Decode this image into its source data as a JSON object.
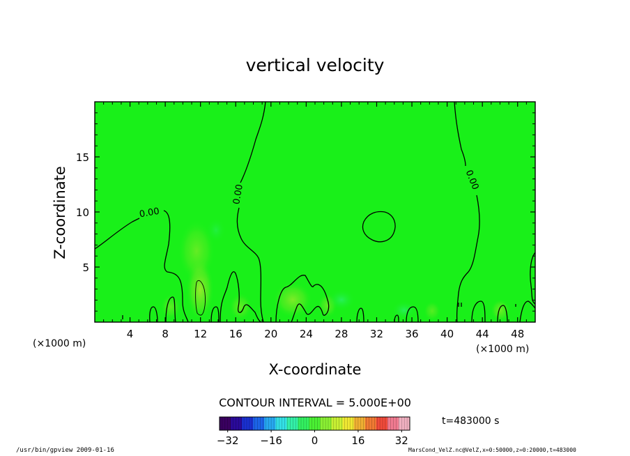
{
  "chart_data": {
    "type": "heatmap",
    "title": "vertical velocity",
    "xlabel": "X-coordinate",
    "ylabel": "Z-coordinate",
    "x_unit": "(×1000 m)",
    "y_unit": "(×1000 m)",
    "xlim": [
      0,
      50
    ],
    "ylim": [
      0,
      20
    ],
    "x_ticks": [
      4,
      8,
      12,
      16,
      20,
      24,
      28,
      32,
      36,
      40,
      44,
      48
    ],
    "y_ticks": [
      5,
      10,
      15
    ],
    "contour_interval_label": "CONTOUR INTERVAL = 5.000E+00",
    "contour_labels": [
      {
        "text": "0.00",
        "x": 6.2,
        "z": 9.9,
        "angle": -10
      },
      {
        "text": "0.00",
        "x": 16.3,
        "z": 11.6,
        "angle": -80
      },
      {
        "text": "0.00",
        "x": 42.8,
        "z": 12.9,
        "angle": 68
      }
    ],
    "colorbar": {
      "min": -35,
      "max": 35,
      "ticks": [
        -32,
        -16,
        0,
        16,
        32
      ],
      "colors": [
        "#3a0060",
        "#2a0a9a",
        "#1a30d0",
        "#1c64e8",
        "#27a8f0",
        "#33e0e6",
        "#33f0a8",
        "#33f060",
        "#4af033",
        "#8af033",
        "#c8f033",
        "#f0e833",
        "#f0b033",
        "#f07a33",
        "#f04a3a",
        "#f07a90",
        "#f0b0c0"
      ]
    },
    "field_background": "#19f019",
    "time_label": "t=483000 s",
    "footer_left": "/usr/bin/gpview  2009-01-16",
    "footer_right": "MarsCond_VelZ.nc@VelZ,x=0:50000,z=0:20000,t=483000"
  }
}
